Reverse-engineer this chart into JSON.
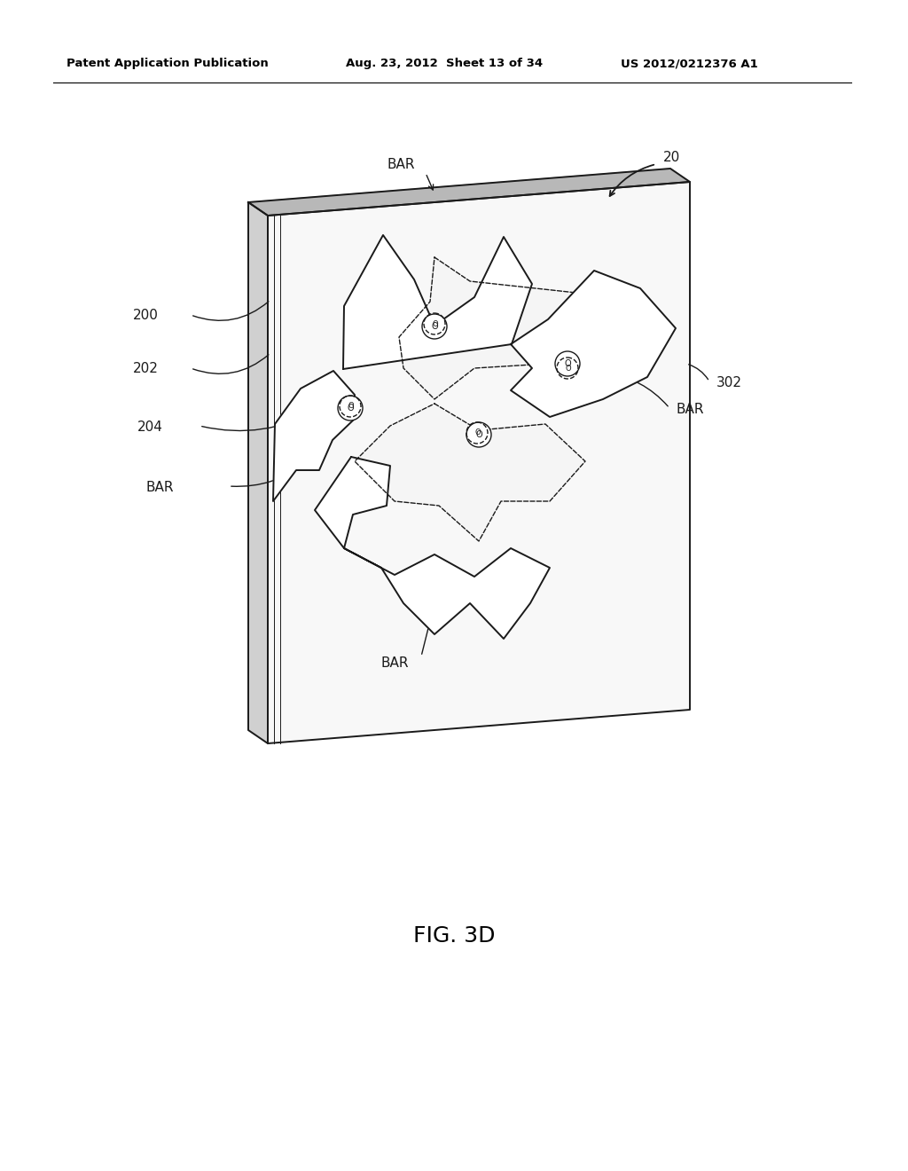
{
  "title": "FIG. 3D",
  "header_left": "Patent Application Publication",
  "header_mid": "Aug. 23, 2012  Sheet 13 of 34",
  "header_right": "US 2012/0212376 A1",
  "bg_color": "#ffffff",
  "label_20": "20",
  "label_200": "200",
  "label_202": "202",
  "label_204": "204",
  "label_302": "302",
  "label_BAR": "BAR"
}
